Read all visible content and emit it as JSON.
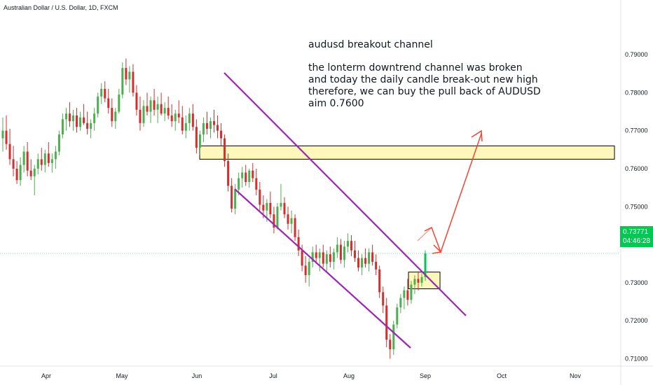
{
  "header": {
    "symbol": "Australian Dollar / U.S. Dollar, 1D, FXCM"
  },
  "annotation": {
    "title": "audusd breakout channel",
    "lines": [
      "the lonterm downtrend channel was broken",
      "and today the daily candle break-out new high",
      "therefore, we can buy the pull back of AUDUSD",
      "aim 0.7600"
    ]
  },
  "price_badge": {
    "price": "0.73771",
    "countdown": "04:46:28"
  },
  "colors": {
    "up": "#26a69a",
    "up_bright": "#00c853",
    "down": "#d32f2f",
    "channel": "#9c27b0",
    "zone_fill": "#fff59d",
    "arrow": "#f44336",
    "current_line": "#00c853"
  },
  "chart_data": {
    "type": "candlestick",
    "x_ticks": [
      "Apr",
      "May",
      "Jun",
      "Jul",
      "Aug",
      "Sep",
      "Oct",
      "Nov"
    ],
    "y_ticks": [
      "0.79000",
      "0.78000",
      "0.77000",
      "0.76000",
      "0.75000",
      "0.74000",
      "0.73000",
      "0.72000",
      "0.71000"
    ],
    "ylim": [
      0.704,
      0.7955
    ],
    "current_price": 0.73771,
    "candles": [
      [
        0.768,
        0.7735,
        0.7645,
        0.77
      ],
      [
        0.77,
        0.774,
        0.765,
        0.7665
      ],
      [
        0.7665,
        0.7705,
        0.761,
        0.7625
      ],
      [
        0.7625,
        0.766,
        0.758,
        0.76
      ],
      [
        0.76,
        0.762,
        0.756,
        0.757
      ],
      [
        0.757,
        0.763,
        0.7555,
        0.761
      ],
      [
        0.761,
        0.766,
        0.759,
        0.7645
      ],
      [
        0.7645,
        0.767,
        0.758,
        0.7595
      ],
      [
        0.7595,
        0.7625,
        0.757,
        0.758
      ],
      [
        0.758,
        0.761,
        0.753,
        0.76
      ],
      [
        0.76,
        0.764,
        0.7585,
        0.7625
      ],
      [
        0.7625,
        0.7655,
        0.7595,
        0.761
      ],
      [
        0.761,
        0.765,
        0.759,
        0.764
      ],
      [
        0.764,
        0.767,
        0.7605,
        0.7615
      ],
      [
        0.7615,
        0.764,
        0.759,
        0.7625
      ],
      [
        0.7625,
        0.766,
        0.76,
        0.7645
      ],
      [
        0.7645,
        0.77,
        0.7635,
        0.769
      ],
      [
        0.769,
        0.7745,
        0.768,
        0.773
      ],
      [
        0.773,
        0.776,
        0.77,
        0.7745
      ],
      [
        0.7745,
        0.7775,
        0.771,
        0.7725
      ],
      [
        0.7725,
        0.7755,
        0.77,
        0.774
      ],
      [
        0.774,
        0.776,
        0.7695,
        0.771
      ],
      [
        0.771,
        0.775,
        0.77,
        0.7735
      ],
      [
        0.7735,
        0.777,
        0.7715,
        0.772
      ],
      [
        0.772,
        0.775,
        0.769,
        0.7705
      ],
      [
        0.7705,
        0.773,
        0.768,
        0.772
      ],
      [
        0.772,
        0.776,
        0.77,
        0.7745
      ],
      [
        0.7745,
        0.78,
        0.7735,
        0.779
      ],
      [
        0.779,
        0.7825,
        0.777,
        0.781
      ],
      [
        0.781,
        0.783,
        0.7775,
        0.7785
      ],
      [
        0.7785,
        0.781,
        0.7745,
        0.776
      ],
      [
        0.776,
        0.7785,
        0.771,
        0.7725
      ],
      [
        0.7725,
        0.776,
        0.7705,
        0.775
      ],
      [
        0.775,
        0.781,
        0.7745,
        0.7795
      ],
      [
        0.7795,
        0.788,
        0.7785,
        0.7865
      ],
      [
        0.7865,
        0.789,
        0.782,
        0.7835
      ],
      [
        0.7835,
        0.787,
        0.78,
        0.7855
      ],
      [
        0.7855,
        0.7875,
        0.779,
        0.78
      ],
      [
        0.78,
        0.782,
        0.774,
        0.7755
      ],
      [
        0.7755,
        0.779,
        0.77,
        0.772
      ],
      [
        0.772,
        0.778,
        0.771,
        0.7765
      ],
      [
        0.7765,
        0.78,
        0.774,
        0.775
      ],
      [
        0.775,
        0.779,
        0.772,
        0.778
      ],
      [
        0.778,
        0.781,
        0.774,
        0.7755
      ],
      [
        0.7755,
        0.779,
        0.772,
        0.777
      ],
      [
        0.777,
        0.78,
        0.774,
        0.7745
      ],
      [
        0.7745,
        0.7775,
        0.7725,
        0.776
      ],
      [
        0.776,
        0.779,
        0.773,
        0.774
      ],
      [
        0.774,
        0.777,
        0.771,
        0.7725
      ],
      [
        0.7725,
        0.7755,
        0.77,
        0.7745
      ],
      [
        0.7745,
        0.778,
        0.772,
        0.7735
      ],
      [
        0.7735,
        0.7765,
        0.769,
        0.77
      ],
      [
        0.77,
        0.774,
        0.768,
        0.772
      ],
      [
        0.772,
        0.776,
        0.77,
        0.7745
      ],
      [
        0.7745,
        0.777,
        0.77,
        0.771
      ],
      [
        0.771,
        0.773,
        0.764,
        0.7655
      ],
      [
        0.7655,
        0.77,
        0.7635,
        0.769
      ],
      [
        0.769,
        0.7735,
        0.767,
        0.772
      ],
      [
        0.772,
        0.775,
        0.769,
        0.7705
      ],
      [
        0.7705,
        0.7735,
        0.768,
        0.7725
      ],
      [
        0.7725,
        0.7755,
        0.7695,
        0.7715
      ],
      [
        0.7715,
        0.774,
        0.768,
        0.77
      ],
      [
        0.77,
        0.772,
        0.766,
        0.768
      ],
      [
        0.768,
        0.769,
        0.7605,
        0.762
      ],
      [
        0.762,
        0.764,
        0.754,
        0.7555
      ],
      [
        0.7555,
        0.7575,
        0.7485,
        0.7495
      ],
      [
        0.7495,
        0.756,
        0.748,
        0.7545
      ],
      [
        0.7545,
        0.759,
        0.753,
        0.7575
      ],
      [
        0.7575,
        0.7605,
        0.755,
        0.759
      ],
      [
        0.759,
        0.761,
        0.7555,
        0.7565
      ],
      [
        0.7565,
        0.76,
        0.755,
        0.7595
      ],
      [
        0.7595,
        0.7615,
        0.7565,
        0.7575
      ],
      [
        0.7575,
        0.76,
        0.753,
        0.7545
      ],
      [
        0.7545,
        0.7565,
        0.749,
        0.7505
      ],
      [
        0.7505,
        0.753,
        0.747,
        0.749
      ],
      [
        0.749,
        0.752,
        0.746,
        0.751
      ],
      [
        0.751,
        0.754,
        0.747,
        0.748
      ],
      [
        0.748,
        0.75,
        0.743,
        0.7445
      ],
      [
        0.7445,
        0.751,
        0.744,
        0.75
      ],
      [
        0.75,
        0.756,
        0.749,
        0.751
      ],
      [
        0.751,
        0.7525,
        0.747,
        0.748
      ],
      [
        0.748,
        0.75,
        0.744,
        0.7455
      ],
      [
        0.7455,
        0.749,
        0.743,
        0.747
      ],
      [
        0.747,
        0.748,
        0.741,
        0.742
      ],
      [
        0.742,
        0.744,
        0.737,
        0.7385
      ],
      [
        0.7385,
        0.74,
        0.733,
        0.7345
      ],
      [
        0.7345,
        0.737,
        0.73,
        0.732
      ],
      [
        0.732,
        0.7365,
        0.729,
        0.7355
      ],
      [
        0.7355,
        0.7395,
        0.734,
        0.738
      ],
      [
        0.738,
        0.74,
        0.735,
        0.7365
      ],
      [
        0.7365,
        0.739,
        0.733,
        0.738
      ],
      [
        0.738,
        0.74,
        0.734,
        0.735
      ],
      [
        0.735,
        0.7385,
        0.733,
        0.7375
      ],
      [
        0.7375,
        0.7395,
        0.734,
        0.7355
      ],
      [
        0.7355,
        0.739,
        0.7335,
        0.738
      ],
      [
        0.738,
        0.742,
        0.7365,
        0.74
      ],
      [
        0.74,
        0.7415,
        0.735,
        0.736
      ],
      [
        0.736,
        0.741,
        0.734,
        0.7395
      ],
      [
        0.7395,
        0.743,
        0.738,
        0.741
      ],
      [
        0.741,
        0.7425,
        0.737,
        0.7385
      ],
      [
        0.7385,
        0.741,
        0.7355,
        0.7365
      ],
      [
        0.7365,
        0.7385,
        0.733,
        0.734
      ],
      [
        0.734,
        0.7375,
        0.732,
        0.7365
      ],
      [
        0.7365,
        0.739,
        0.734,
        0.735
      ],
      [
        0.735,
        0.739,
        0.733,
        0.738
      ],
      [
        0.738,
        0.74,
        0.7345,
        0.7355
      ],
      [
        0.7355,
        0.7375,
        0.732,
        0.7335
      ],
      [
        0.7335,
        0.7345,
        0.726,
        0.7275
      ],
      [
        0.7275,
        0.729,
        0.722,
        0.724
      ],
      [
        0.724,
        0.726,
        0.713,
        0.715
      ],
      [
        0.715,
        0.7165,
        0.71,
        0.7125
      ],
      [
        0.7125,
        0.72,
        0.711,
        0.719
      ],
      [
        0.719,
        0.7245,
        0.718,
        0.7235
      ],
      [
        0.7235,
        0.727,
        0.722,
        0.726
      ],
      [
        0.726,
        0.729,
        0.723,
        0.728
      ],
      [
        0.728,
        0.731,
        0.724,
        0.7255
      ],
      [
        0.7255,
        0.7305,
        0.7245,
        0.7295
      ],
      [
        0.7295,
        0.732,
        0.727,
        0.731
      ],
      [
        0.731,
        0.733,
        0.728,
        0.73
      ],
      [
        0.73,
        0.7325,
        0.729,
        0.7315
      ],
      [
        0.7315,
        0.7385,
        0.7305,
        0.7377
      ]
    ]
  }
}
